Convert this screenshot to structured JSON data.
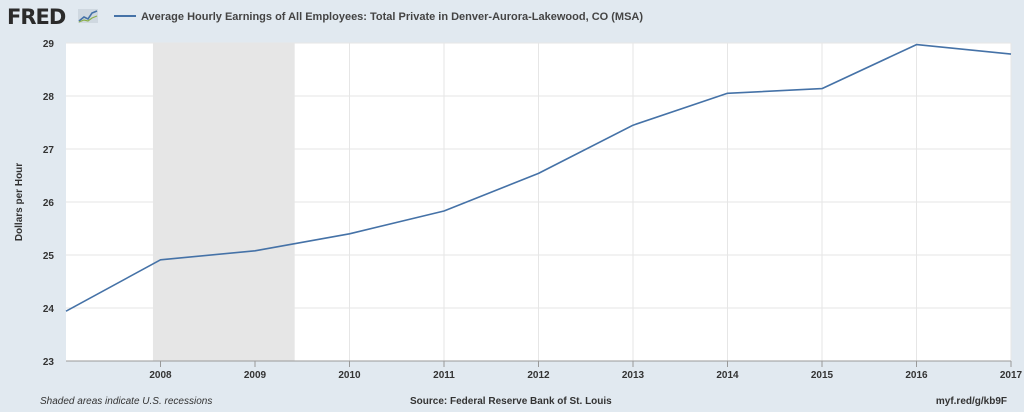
{
  "header": {
    "logo_text": "FRED",
    "logo_icon": "line-chart-icon"
  },
  "chart_data": {
    "type": "line",
    "title": "",
    "ylabel": "Dollars per Hour",
    "xlabel": "",
    "x_ticks": [
      "2008",
      "2009",
      "2010",
      "2011",
      "2012",
      "2013",
      "2014",
      "2015",
      "2016",
      "2017"
    ],
    "y_ticks": [
      "23",
      "24",
      "25",
      "26",
      "27",
      "28",
      "29"
    ],
    "ylim": [
      23,
      29
    ],
    "xlim": [
      2007.0,
      2017.0
    ],
    "grid": true,
    "legend_position": "top",
    "series": [
      {
        "name": "Average Hourly Earnings of All Employees: Total Private in Denver-Aurora-Lakewood, CO (MSA)",
        "color": "#4572a7",
        "x": [
          2007,
          2008,
          2009,
          2010,
          2011,
          2012,
          2013,
          2014,
          2015,
          2016,
          2017
        ],
        "values": [
          23.94,
          24.91,
          25.08,
          25.4,
          25.83,
          26.54,
          27.45,
          28.05,
          28.14,
          28.97,
          28.79
        ]
      }
    ],
    "recessions": [
      {
        "start": 2007.92,
        "end": 2009.42
      }
    ],
    "recession_color": "#e6e6e6"
  },
  "footer": {
    "recession_note": "Shaded areas indicate U.S. recessions",
    "source": "Source: Federal Reserve Bank of St. Louis",
    "link": "myf.red/g/kb9F"
  }
}
